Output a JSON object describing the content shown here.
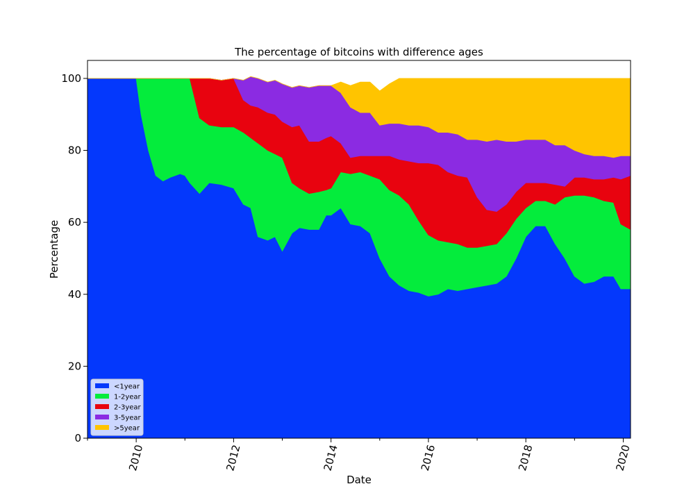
{
  "chart_data": {
    "type": "area",
    "stacked": true,
    "title": "The percentage of bitcoins with difference ages",
    "xlabel": "Date",
    "ylabel": "Percentage",
    "xlim": [
      2009.0,
      2020.15
    ],
    "ylim": [
      0,
      105
    ],
    "x_ticks": [
      2010,
      2012,
      2014,
      2016,
      2018,
      2020
    ],
    "y_ticks": [
      0,
      20,
      40,
      60,
      80,
      100
    ],
    "legend_position": "lower-left",
    "grid": false,
    "x": [
      2009.0,
      2010.0,
      2010.1,
      2010.25,
      2010.4,
      2010.55,
      2010.7,
      2010.9,
      2011.0,
      2011.1,
      2011.3,
      2011.5,
      2011.75,
      2012.0,
      2012.2,
      2012.35,
      2012.5,
      2012.7,
      2012.85,
      2013.0,
      2013.2,
      2013.35,
      2013.55,
      2013.75,
      2013.9,
      2014.0,
      2014.2,
      2014.4,
      2014.6,
      2014.8,
      2015.0,
      2015.2,
      2015.4,
      2015.6,
      2015.8,
      2016.0,
      2016.2,
      2016.4,
      2016.6,
      2016.8,
      2017.0,
      2017.2,
      2017.4,
      2017.6,
      2017.8,
      2018.0,
      2018.2,
      2018.4,
      2018.6,
      2018.8,
      2019.0,
      2019.2,
      2019.4,
      2019.6,
      2019.8,
      2019.95,
      2020.15
    ],
    "series": [
      {
        "name": "<1year",
        "color": "#0438fc",
        "values": [
          100,
          100,
          90,
          80,
          73,
          71.5,
          72.5,
          73.5,
          73,
          71,
          68,
          71,
          70.5,
          69.5,
          65,
          64,
          56,
          55,
          56,
          52,
          57,
          58.5,
          58,
          58,
          62,
          62,
          64,
          59.5,
          59,
          57,
          50,
          45,
          42.5,
          41,
          40.5,
          39.5,
          40,
          41.5,
          41,
          41.5,
          42,
          42.5,
          43,
          45,
          50,
          56,
          59,
          59,
          54,
          50,
          45,
          43,
          43.5,
          45,
          45,
          41.5,
          41.5
        ]
      },
      {
        "name": "1-2year",
        "color": "#04ec3c",
        "values": [
          0,
          0,
          10,
          20,
          27,
          28.5,
          27.5,
          26.5,
          27,
          29,
          21,
          16,
          16,
          17,
          20,
          19.5,
          26,
          25,
          23,
          26,
          14,
          11,
          10,
          10.5,
          7,
          7.5,
          10,
          14,
          15,
          16,
          22,
          24,
          25,
          24,
          20,
          17,
          15,
          13,
          13,
          11.5,
          11,
          11,
          11,
          12,
          11,
          8,
          7,
          7,
          11,
          17,
          22.5,
          24.5,
          23.5,
          21,
          20.5,
          18,
          16.5
        ]
      },
      {
        "name": "2-3year",
        "color": "#e8030f",
        "values": [
          0,
          0,
          0,
          0,
          0,
          0,
          0,
          0,
          0,
          0,
          11,
          13,
          13,
          13.5,
          9,
          9,
          10,
          10.5,
          11,
          10,
          15.5,
          17.5,
          14.5,
          14,
          14.5,
          14.5,
          8,
          4.5,
          4.5,
          5.5,
          6.5,
          9.5,
          10,
          12,
          16,
          20,
          21,
          19.5,
          19,
          19.5,
          14,
          10,
          9,
          8,
          7.5,
          7,
          5,
          5,
          5.5,
          3,
          5,
          5,
          5,
          6,
          7,
          12.5,
          15
        ]
      },
      {
        "name": "3-5year",
        "color": "#8b2be2",
        "values": [
          0,
          0,
          0,
          0,
          0,
          0,
          0,
          0,
          0,
          0,
          0,
          0,
          0,
          0,
          5.5,
          8,
          8,
          8.5,
          9.5,
          10.5,
          11,
          11,
          15,
          15.5,
          14.5,
          14,
          14,
          14,
          12,
          12,
          8.5,
          9,
          10,
          10,
          10.5,
          10,
          9,
          11,
          11.5,
          10.5,
          16,
          19,
          20,
          17.5,
          14,
          12,
          12,
          12,
          11,
          11.5,
          7.5,
          6.5,
          6.5,
          6.5,
          5.5,
          6.5,
          5.5
        ]
      },
      {
        "name": ">5year",
        "color": "#ffc400",
        "values": [
          0,
          0,
          0,
          0,
          0,
          0,
          0,
          0,
          0,
          0,
          0,
          0,
          0,
          0,
          0,
          0,
          0,
          0,
          0,
          0,
          0,
          0,
          0,
          0,
          0,
          0,
          3,
          6,
          8.5,
          8.5,
          9.5,
          11,
          12.5,
          13,
          13,
          13.5,
          15,
          15,
          15.5,
          17,
          17,
          17.5,
          17,
          17.5,
          17.5,
          17,
          17,
          17,
          18.5,
          18.5,
          20,
          21,
          21.5,
          21.5,
          22,
          21.5,
          21.5
        ]
      }
    ]
  }
}
